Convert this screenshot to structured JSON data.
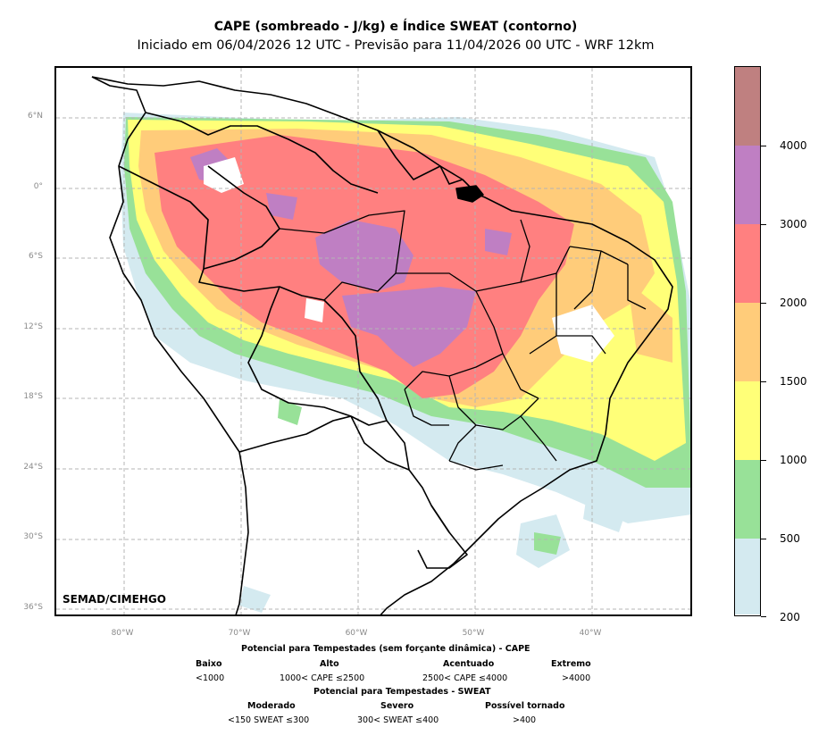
{
  "title": {
    "line1": "CAPE (sombreado - J/kg) e Índice SWEAT (contorno)",
    "line2": "Iniciado em 06/04/2026 12 UTC - Previsão para 11/04/2026 00 UTC - WRF 12km"
  },
  "map": {
    "credit": "SEMAD/CIMEHGO",
    "lat_labels": [
      "6°N",
      "0°",
      "6°S",
      "12°S",
      "18°S",
      "24°S",
      "30°S",
      "36°S"
    ],
    "lon_labels": [
      "80°W",
      "70°W",
      "60°W",
      "50°W",
      "40°W"
    ],
    "lat_range": [
      -36.8,
      10.2
    ],
    "lon_range": [
      -85.8,
      -31.4
    ]
  },
  "colorbar": {
    "labels": [
      "200",
      "500",
      "1000",
      "1500",
      "2000",
      "3000",
      "4000"
    ],
    "colors": [
      "#d4eaf0",
      "#98e198",
      "#ffff78",
      "#ffcc7a",
      "#ff8080",
      "#bf7fc3",
      "#bf8080"
    ]
  },
  "legend": {
    "cape_title": "Potencial para Tempestades (sem forçante dinâmica) - CAPE",
    "cape_categories": [
      {
        "name": "Baixo",
        "range": "<1000"
      },
      {
        "name": "Alto",
        "range": "1000< CAPE ≤2500"
      },
      {
        "name": "Acentuado",
        "range": "2500< CAPE ≤4000"
      },
      {
        "name": "Extremo",
        "range": ">4000"
      }
    ],
    "sweat_title": "Potencial para Tempestades - SWEAT",
    "sweat_categories": [
      {
        "name": "Moderado",
        "range": "<150 SWEAT ≤300"
      },
      {
        "name": "Severo",
        "range": "300< SWEAT ≤400"
      },
      {
        "name": "Possível tornado",
        "range": ">400"
      }
    ]
  }
}
